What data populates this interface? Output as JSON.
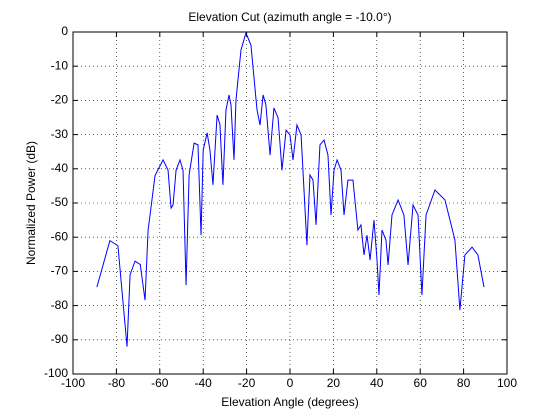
{
  "chart_data": {
    "type": "line",
    "title": "Elevation Cut (azimuth angle = -10.0°)",
    "x_label": "Elevation Angle (degrees)",
    "y_label": "Normalized Power (dB)",
    "xlim": [
      -100,
      100
    ],
    "ylim": [
      -100,
      0
    ],
    "xticks": [
      -100,
      -80,
      -60,
      -40,
      -20,
      0,
      20,
      40,
      60,
      80,
      100
    ],
    "yticks": [
      -100,
      -90,
      -80,
      -70,
      -60,
      -50,
      -40,
      -30,
      -20,
      -10,
      0
    ],
    "grid": true,
    "series": [
      {
        "color": "#0000ff",
        "x": [
          -89,
          -83,
          -79.3,
          -75.1,
          -73.7,
          -71.4,
          -69,
          -66.8,
          -65.4,
          -62.2,
          -58.5,
          -56.2,
          -54.8,
          -53.9,
          -52.5,
          -50.7,
          -49.3,
          -47.9,
          -46.5,
          -44.2,
          -42.4,
          -41,
          -40,
          -38.2,
          -36.9,
          -35.5,
          -33.6,
          -32.3,
          -30.9,
          -29.5,
          -28.1,
          -27.2,
          -25.8,
          -24.9,
          -22.6,
          -20.3,
          -18,
          -15.2,
          -13.8,
          -12.4,
          -11.1,
          -9.2,
          -7.4,
          -5.5,
          -3.7,
          -1.8,
          0,
          1.4,
          3.2,
          5.1,
          7.8,
          9.2,
          10.6,
          12,
          13.8,
          15.7,
          17.5,
          18.9,
          20.3,
          21.7,
          23.5,
          24.9,
          26.7,
          29,
          31.3,
          32.7,
          34.1,
          35.5,
          36.9,
          38.7,
          40.1,
          41,
          42.4,
          44.2,
          45.2,
          47,
          49.8,
          52.5,
          54.4,
          56.7,
          59,
          60.8,
          62.7,
          66.8,
          71.4,
          76,
          78.3,
          80.6,
          83.9,
          86.6,
          89.4
        ],
        "values": [
          -74.6,
          -61,
          -62.5,
          -92,
          -71,
          -67,
          -68,
          -78.4,
          -58,
          -42,
          -37.4,
          -40.4,
          -51.5,
          -50.6,
          -40.4,
          -37.4,
          -40.4,
          -74,
          -41.8,
          -32.5,
          -33,
          -59.4,
          -34.5,
          -29.5,
          -34.5,
          -44.7,
          -24.3,
          -27,
          -44.7,
          -22.8,
          -18.4,
          -21.3,
          -37.4,
          -19.9,
          -5.3,
          -0.3,
          -3.8,
          -22.8,
          -27.2,
          -18.4,
          -21.3,
          -36,
          -22.2,
          -25.1,
          -40.4,
          -28.7,
          -30.1,
          -37.4,
          -27.2,
          -30.1,
          -62.3,
          -41.8,
          -43.3,
          -56.4,
          -33,
          -31.6,
          -36,
          -53.5,
          -40.4,
          -37.4,
          -40.4,
          -53.5,
          -43.3,
          -43.3,
          -57.9,
          -56.4,
          -65.2,
          -59.4,
          -66.7,
          -55,
          -66.7,
          -76.9,
          -57.9,
          -60.8,
          -68.1,
          -53.5,
          -49.1,
          -53.5,
          -68.1,
          -50.6,
          -53.5,
          -76.9,
          -53.5,
          -46.2,
          -49.1,
          -60.8,
          -81.3,
          -65.2,
          -62.9,
          -65.2,
          -74.6
        ]
      }
    ]
  }
}
